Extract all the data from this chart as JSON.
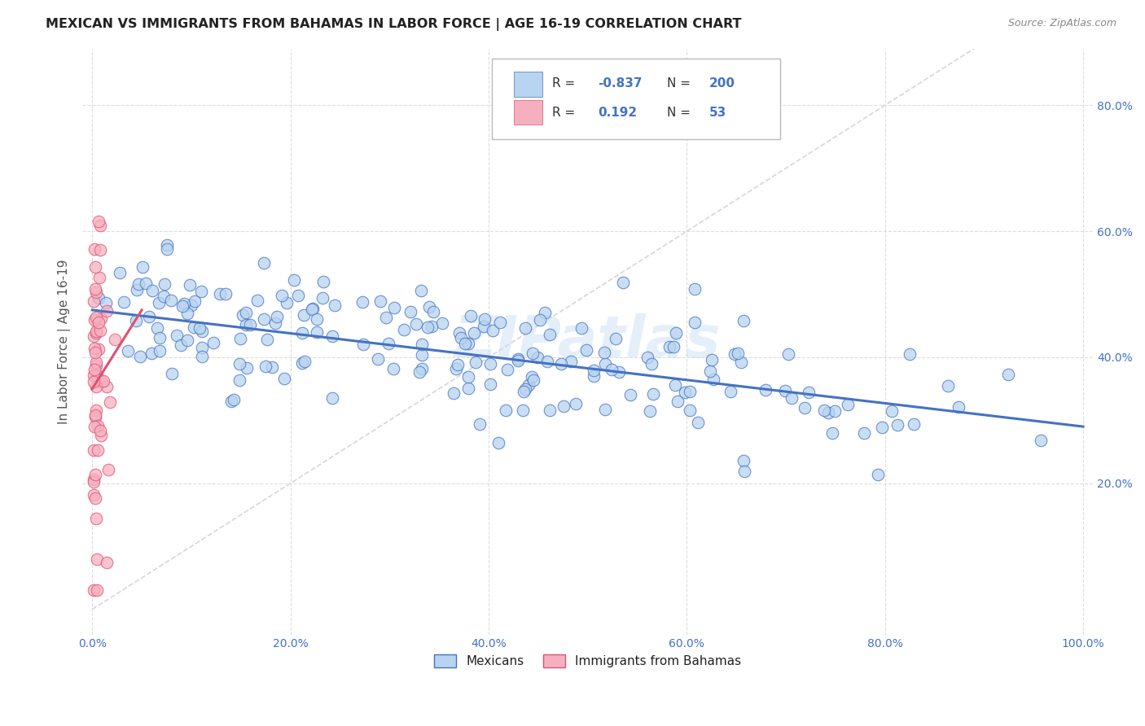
{
  "title": "MEXICAN VS IMMIGRANTS FROM BAHAMAS IN LABOR FORCE | AGE 16-19 CORRELATION CHART",
  "source": "Source: ZipAtlas.com",
  "ylabel": "In Labor Force | Age 16-19",
  "blue_R": -0.837,
  "blue_N": 200,
  "pink_R": 0.192,
  "pink_N": 53,
  "blue_color": "#b8d4f0",
  "pink_color": "#f5b0c0",
  "blue_line_color": "#4472c4",
  "pink_line_color": "#e05070",
  "diagonal_color": "#cccccc",
  "watermark": "ZIPatlas",
  "legend_blue_label": "Mexicans",
  "legend_pink_label": "Immigrants from Bahamas",
  "background_color": "#ffffff",
  "grid_color": "#dddddd",
  "title_color": "#222222",
  "axis_label_color": "#4472c4",
  "ylabel_color": "#555555",
  "blue_seed": 12,
  "pink_seed": 7,
  "blue_intercept": 0.475,
  "blue_slope": -0.185,
  "blue_noise": 0.048,
  "pink_intercept": 0.35,
  "pink_slope": 2.5,
  "pink_noise": 0.13
}
